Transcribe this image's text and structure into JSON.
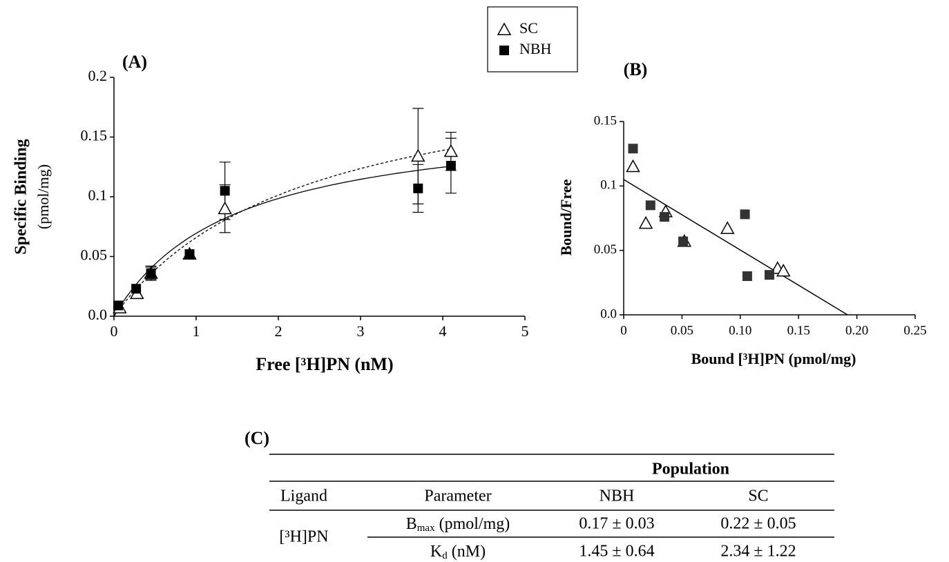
{
  "chart_data": [
    {
      "type": "scatter",
      "title": "(A)",
      "xlabel": "Free [³H]PN (nM)",
      "ylabel": [
        "Specific Binding",
        "(pmol/mg)"
      ],
      "xlim": [
        0,
        5
      ],
      "xticks": [
        0,
        1,
        2,
        3,
        4,
        5
      ],
      "ylim": [
        0,
        0.2
      ],
      "yticks": [
        {
          "value": 0,
          "label": "0.0"
        },
        0.05,
        0.1,
        0.15,
        0.2
      ],
      "series": [
        {
          "name": "SC",
          "color": "#000000",
          "marker": "triangle-open",
          "line_style": "dash",
          "x": [
            0.07,
            0.28,
            0.45,
            0.92,
            1.35,
            3.7,
            4.1
          ],
          "values": [
            0.007,
            0.019,
            0.036,
            0.052,
            0.09,
            0.134,
            0.138
          ],
          "errors": [
            null,
            null,
            0.005,
            null,
            0.02,
            0.04,
            0.016
          ],
          "fit": [
            0.22,
            2.34
          ]
        },
        {
          "name": "NBH",
          "color": "#000000",
          "marker": "square",
          "line_style": "solid",
          "x": [
            0.05,
            0.27,
            0.45,
            0.92,
            1.35,
            3.7,
            4.1
          ],
          "values": [
            0.009,
            0.023,
            0.036,
            0.052,
            0.105,
            0.107,
            0.126
          ],
          "errors": [
            null,
            null,
            0.006,
            null,
            0.024,
            0.02,
            0.023
          ],
          "fit": [
            0.17,
            1.45
          ]
        }
      ]
    },
    {
      "type": "scatter",
      "title": "(B)",
      "xlabel": "Bound [³H]PN (pmol/mg)",
      "ylabel": [
        "Bound/Free"
      ],
      "xlim": [
        0,
        0.25
      ],
      "xticks": [
        0,
        0.05,
        {
          "value": 0.1,
          "label": "0.10"
        },
        0.15,
        {
          "value": 0.2,
          "label": "0.20"
        },
        0.25
      ],
      "ylim": [
        0,
        0.15
      ],
      "yticks": [
        {
          "value": 0,
          "label": "0.0"
        },
        0.05,
        0.1,
        0.15
      ],
      "series": [
        {
          "name": "SC",
          "color": "#000000",
          "marker": "triangle-open",
          "x": [
            0.008,
            0.019,
            0.036,
            0.052,
            0.089,
            0.132,
            0.137
          ],
          "values": [
            0.115,
            0.071,
            0.08,
            0.057,
            0.067,
            0.036,
            0.034
          ]
        },
        {
          "name": "NBH",
          "color": "#333333",
          "marker": "square",
          "x": [
            0.008,
            0.023,
            0.035,
            0.051,
            0.104,
            0.106,
            0.125
          ],
          "values": [
            0.129,
            0.085,
            0.076,
            0.057,
            0.078,
            0.03,
            0.031
          ]
        }
      ],
      "line": {
        "x": [
          0,
          0.192
        ],
        "y": [
          0.105,
          0
        ]
      }
    }
  ],
  "table": {
    "label": "(C)",
    "group_header": "Population",
    "header": [
      "Ligand",
      "Parameter",
      "NBH",
      "SC"
    ],
    "ligand": "[³H]PN",
    "rows": [
      {
        "parameter": [
          "B",
          "max",
          " (pmol/mg)"
        ],
        "values": [
          "0.17 ± 0.03",
          "0.22 ± 0.05"
        ]
      },
      {
        "parameter": [
          "K",
          "d",
          " (nM)"
        ],
        "values": [
          "1.45 ± 0.64",
          "2.34 ± 1.22"
        ]
      }
    ]
  }
}
